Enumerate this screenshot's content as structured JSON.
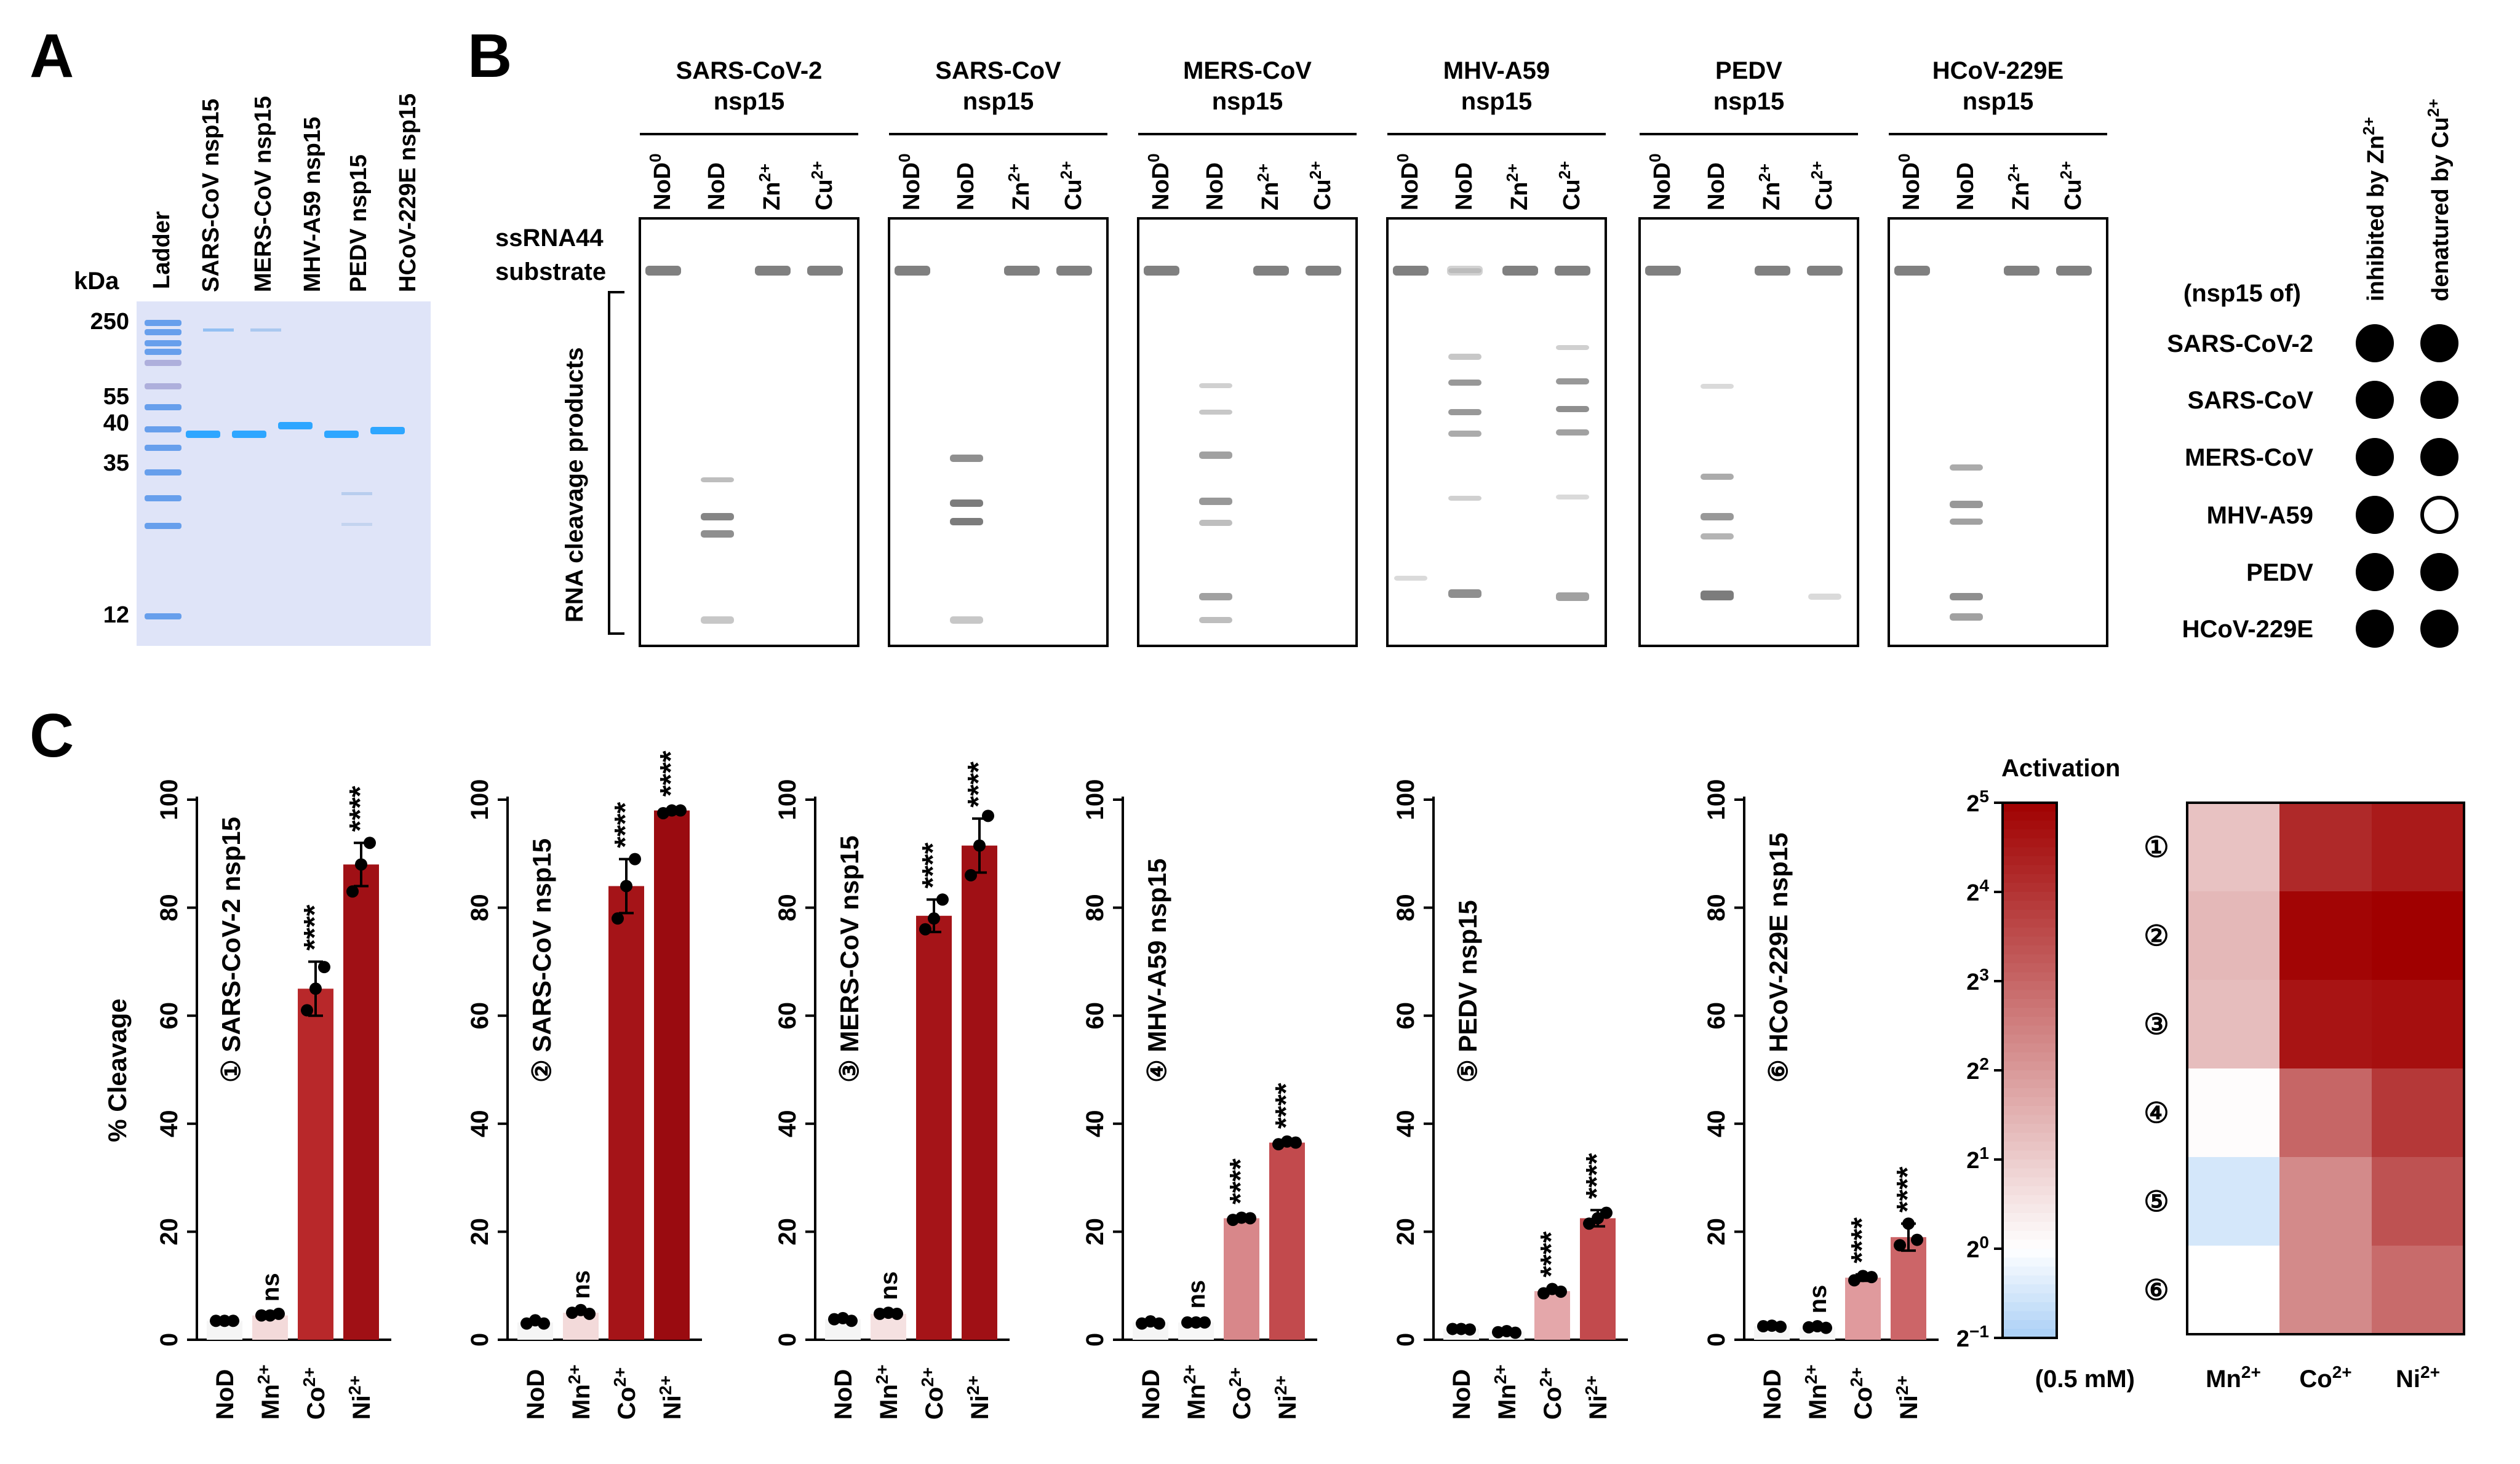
{
  "panel_labels": {
    "a": "A",
    "b": "B",
    "c": "C"
  },
  "panel_a": {
    "unit_label": "kDa",
    "lane_labels": [
      "Ladder",
      "SARS-CoV nsp15",
      "MERS-CoV nsp15",
      "MHV-A59 nsp15",
      "PEDV nsp15",
      "HCoV-229E nsp15"
    ],
    "markers": [
      "250",
      "55",
      "40",
      "35",
      "12"
    ]
  },
  "panel_b": {
    "viruses": [
      {
        "name": "SARS-CoV-2",
        "sub": "nsp15"
      },
      {
        "name": "SARS-CoV",
        "sub": "nsp15"
      },
      {
        "name": "MERS-CoV",
        "sub": "nsp15"
      },
      {
        "name": "MHV-A59",
        "sub": "nsp15"
      },
      {
        "name": "PEDV",
        "sub": "nsp15"
      },
      {
        "name": "HCoV-229E",
        "sub": "nsp15"
      }
    ],
    "lane_base": [
      "NoD",
      "NoD",
      "Zn",
      "Cu"
    ],
    "lane_sup": [
      "0",
      "",
      "2+",
      "2+"
    ],
    "substrate_label": {
      "line1": "ssRNA44",
      "line2": "substrate"
    },
    "products_label": "RNA cleavage products",
    "summary": {
      "row_header": "(nsp15 of)",
      "col_headers": [
        {
          "base": "inhibited by Zn",
          "sup": "2+"
        },
        {
          "base": "denatured by Cu",
          "sup": "2+"
        }
      ],
      "rows": [
        {
          "name": "SARS-CoV-2",
          "values": [
            true,
            true
          ]
        },
        {
          "name": "SARS-CoV",
          "values": [
            true,
            true
          ]
        },
        {
          "name": "MERS-CoV",
          "values": [
            true,
            true
          ]
        },
        {
          "name": "MHV-A59",
          "values": [
            true,
            false
          ]
        },
        {
          "name": "PEDV",
          "values": [
            true,
            true
          ]
        },
        {
          "name": "HCoV-229E",
          "values": [
            true,
            true
          ]
        }
      ]
    }
  },
  "chart_data": [
    {
      "type": "bar",
      "title": "① SARS-CoV-2 nsp15",
      "ylabel": "% Cleavage",
      "xlabel": "",
      "ylim": [
        0,
        100
      ],
      "yticks": [
        "0",
        "20",
        "40",
        "60",
        "80",
        "100"
      ],
      "categories": [
        {
          "base": "NoD",
          "sup": ""
        },
        {
          "base": "Mn",
          "sup": "2+"
        },
        {
          "base": "Co",
          "sup": "2+"
        },
        {
          "base": "Ni",
          "sup": "2+"
        }
      ],
      "values": [
        3.5,
        4.5,
        65,
        88
      ],
      "error": [
        0.2,
        0.4,
        5,
        4
      ],
      "points": [
        [
          3.5,
          3.5,
          3.5
        ],
        [
          4.5,
          4.5,
          4.8
        ],
        [
          61,
          65,
          69
        ],
        [
          83,
          88,
          92
        ]
      ],
      "significance": [
        "",
        "ns",
        "****",
        "****"
      ],
      "colors": [
        "#f5f5f5",
        "#f3dada",
        "#b8282a",
        "#a01015"
      ]
    },
    {
      "type": "bar",
      "title": "② SARS-CoV nsp15",
      "ylabel": "",
      "xlabel": "",
      "ylim": [
        0,
        100
      ],
      "yticks": [
        "0",
        "20",
        "40",
        "60",
        "80",
        "100"
      ],
      "categories": [
        {
          "base": "NoD",
          "sup": ""
        },
        {
          "base": "Mn",
          "sup": "2+"
        },
        {
          "base": "Co",
          "sup": "2+"
        },
        {
          "base": "Ni",
          "sup": "2+"
        }
      ],
      "values": [
        3.2,
        5.0,
        84,
        98
      ],
      "error": [
        0.5,
        0.5,
        5,
        0.5
      ],
      "points": [
        [
          3.0,
          3.6,
          3.0
        ],
        [
          5.0,
          5.5,
          4.8
        ],
        [
          78,
          84,
          89
        ],
        [
          97.5,
          98,
          98
        ]
      ],
      "significance": [
        "",
        "ns",
        "****",
        "****"
      ],
      "colors": [
        "#f5f5f5",
        "#f3dada",
        "#a51418",
        "#9a0b10"
      ]
    },
    {
      "type": "bar",
      "title": "③ MERS-CoV nsp15",
      "ylabel": "",
      "xlabel": "",
      "ylim": [
        0,
        100
      ],
      "yticks": [
        "0",
        "20",
        "40",
        "60",
        "80",
        "100"
      ],
      "categories": [
        {
          "base": "NoD",
          "sup": ""
        },
        {
          "base": "Mn",
          "sup": "2+"
        },
        {
          "base": "Co",
          "sup": "2+"
        },
        {
          "base": "Ni",
          "sup": "2+"
        }
      ],
      "values": [
        3.8,
        4.8,
        78.5,
        91.5
      ],
      "error": [
        0.3,
        0.3,
        3,
        5
      ],
      "points": [
        [
          3.8,
          4.0,
          3.5
        ],
        [
          4.8,
          5.0,
          4.8
        ],
        [
          76,
          78,
          81.5
        ],
        [
          86,
          91.5,
          97
        ]
      ],
      "significance": [
        "",
        "ns",
        "****",
        "****"
      ],
      "colors": [
        "#f5f5f5",
        "#f5e1e1",
        "#a51418",
        "#a01015"
      ]
    },
    {
      "type": "bar",
      "title": "④ MHV-A59 nsp15",
      "ylabel": "",
      "xlabel": "",
      "ylim": [
        0,
        100
      ],
      "yticks": [
        "0",
        "20",
        "40",
        "60",
        "80",
        "100"
      ],
      "categories": [
        {
          "base": "NoD",
          "sup": ""
        },
        {
          "base": "Mn",
          "sup": "2+"
        },
        {
          "base": "Co",
          "sup": "2+"
        },
        {
          "base": "Ni",
          "sup": "2+"
        }
      ],
      "values": [
        3.2,
        3.2,
        22.5,
        36.5
      ],
      "error": [
        0.3,
        0.2,
        0.4,
        0.4
      ],
      "points": [
        [
          3.0,
          3.4,
          3.0
        ],
        [
          3.2,
          3.2,
          3.2
        ],
        [
          22.2,
          22.6,
          22.5
        ],
        [
          36.2,
          36.7,
          36.5
        ]
      ],
      "significance": [
        "",
        "ns",
        "****",
        "****"
      ],
      "colors": [
        "#f5f5f5",
        "#f7f7f7",
        "#d8878a",
        "#c24a4d"
      ]
    },
    {
      "type": "bar",
      "title": "⑤ PEDV nsp15",
      "ylabel": "",
      "xlabel": "",
      "ylim": [
        0,
        100
      ],
      "yticks": [
        "0",
        "20",
        "40",
        "60",
        "80",
        "100"
      ],
      "categories": [
        {
          "base": "NoD",
          "sup": ""
        },
        {
          "base": "Mn",
          "sup": "2+"
        },
        {
          "base": "Co",
          "sup": "2+"
        },
        {
          "base": "Ni",
          "sup": "2+"
        }
      ],
      "values": [
        2.0,
        1.5,
        9.0,
        22.5
      ],
      "error": [
        0.2,
        0.3,
        0.5,
        1.5
      ],
      "points": [
        [
          2.0,
          2.0,
          1.9
        ],
        [
          1.4,
          1.6,
          1.3
        ],
        [
          8.6,
          9.4,
          8.9
        ],
        [
          21.5,
          22.5,
          23.5
        ]
      ],
      "significance": [
        "",
        "",
        "****",
        "****"
      ],
      "colors": [
        "#f5f5f5",
        "#f7f7f7",
        "#e4a7aa",
        "#c24a4d"
      ]
    },
    {
      "type": "bar",
      "title": "⑥ HCoV-229E nsp15",
      "ylabel": "",
      "xlabel": "",
      "ylim": [
        0,
        100
      ],
      "yticks": [
        "0",
        "20",
        "40",
        "60",
        "80",
        "100"
      ],
      "categories": [
        {
          "base": "NoD",
          "sup": ""
        },
        {
          "base": "Mn",
          "sup": "2+"
        },
        {
          "base": "Co",
          "sup": "2+"
        },
        {
          "base": "Ni",
          "sup": "2+"
        }
      ],
      "values": [
        2.5,
        2.3,
        11.5,
        19
      ],
      "error": [
        0.2,
        0.3,
        0.6,
        2.5
      ],
      "points": [
        [
          2.5,
          2.6,
          2.4
        ],
        [
          2.3,
          2.5,
          2.2
        ],
        [
          11.0,
          11.8,
          11.6
        ],
        [
          17.5,
          21.5,
          18.5
        ]
      ],
      "significance": [
        "",
        "ns",
        "****",
        "****"
      ],
      "colors": [
        "#f5f5f5",
        "#f7f7f7",
        "#e09a9d",
        "#cc6568"
      ]
    },
    {
      "type": "heatmap",
      "title": "Activation",
      "concentration_label": "(0.5 mM)",
      "columns": [
        {
          "base": "Mn",
          "sup": "2+"
        },
        {
          "base": "Co",
          "sup": "2+"
        },
        {
          "base": "Ni",
          "sup": "2+"
        }
      ],
      "rows": [
        "①",
        "②",
        "③",
        "④",
        "⑤",
        "⑥"
      ],
      "values": [
        [
          1.2,
          4.2,
          4.5
        ],
        [
          1.4,
          4.9,
          5.0
        ],
        [
          1.3,
          4.6,
          4.7
        ],
        [
          0.05,
          3.0,
          3.9
        ],
        [
          -0.5,
          2.3,
          3.4
        ],
        [
          0.0,
          2.3,
          2.9
        ]
      ],
      "scale_min": -1,
      "scale_max": 5,
      "scale_tick_bases": [
        "2",
        "2",
        "2",
        "2",
        "2",
        "2",
        "2"
      ],
      "scale_tick_exps": [
        "5",
        "4",
        "3",
        "2",
        "1",
        "0",
        "−1"
      ],
      "scale_tick_values": [
        5,
        4,
        3,
        2,
        1,
        0,
        -1
      ],
      "scale_colors": {
        "low": "#a9cff5",
        "mid": "#ffffff",
        "high": "#a00000"
      }
    }
  ]
}
